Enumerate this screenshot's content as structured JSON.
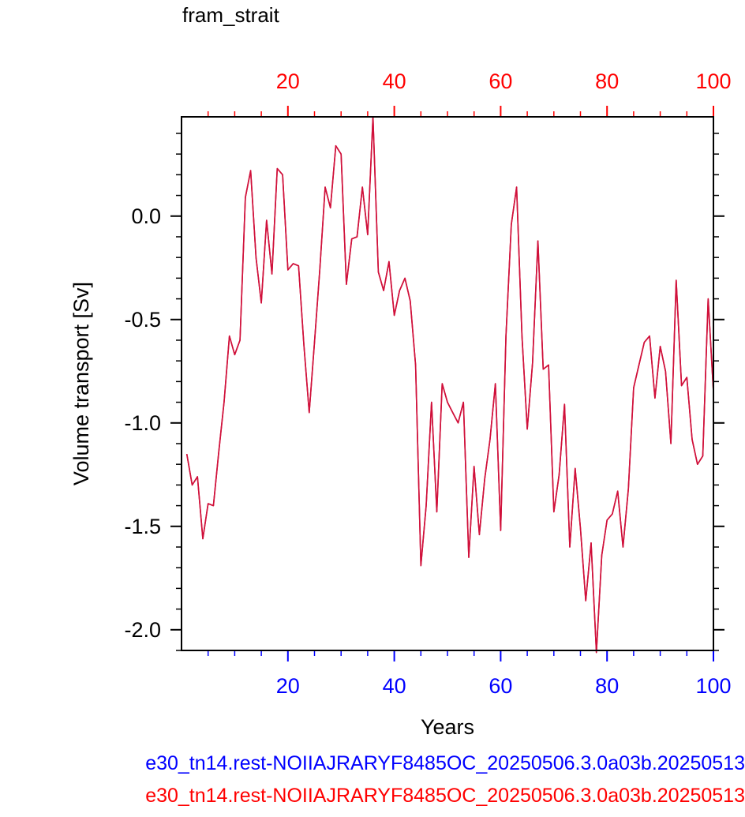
{
  "chart_data": {
    "type": "line",
    "title": "fram_strait",
    "xlabel": "Years",
    "ylabel": "Volume transport [Sv]",
    "xlim": [
      0,
      100
    ],
    "ylim": [
      -2.1,
      0.48
    ],
    "x_ticks": [
      20,
      40,
      60,
      80,
      100
    ],
    "x_tick_labels": [
      "20",
      "40",
      "60",
      "80",
      "100"
    ],
    "y_ticks": [
      0.0,
      -0.5,
      -1.0,
      -1.5,
      -2.0
    ],
    "y_tick_labels": [
      "0.0",
      "-0.5",
      "-1.0",
      "-1.5",
      "-2.0"
    ],
    "grid": false,
    "series": [
      {
        "name": "e30_tn14.rest-NOIIAJRARYF8485OC_20250506.3.0a03b.20250513",
        "color": "#0000ff",
        "x": [
          1,
          2,
          3,
          4,
          5,
          6,
          7,
          8,
          9,
          10,
          11,
          12,
          13,
          14,
          15,
          16,
          17,
          18,
          19,
          20,
          21,
          22,
          23,
          24,
          25,
          26,
          27,
          28,
          29,
          30,
          31,
          32,
          33,
          34,
          35,
          36,
          37,
          38,
          39,
          40,
          41,
          42,
          43,
          44,
          45,
          46,
          47,
          48,
          49,
          50,
          51,
          52,
          53,
          54,
          55,
          56,
          57,
          58,
          59,
          60,
          61,
          62,
          63,
          64,
          65,
          66,
          67,
          68,
          69,
          70,
          71,
          72,
          73,
          74,
          75,
          76,
          77,
          78,
          79,
          80,
          81,
          82,
          83,
          84,
          85,
          86,
          87,
          88,
          89,
          90,
          91,
          92,
          93,
          94,
          95,
          96,
          97,
          98,
          99,
          100
        ],
        "values": [
          -1.15,
          -1.3,
          -1.26,
          -1.56,
          -1.39,
          -1.4,
          -1.14,
          -0.9,
          -0.58,
          -0.67,
          -0.6,
          0.09,
          0.22,
          -0.2,
          -0.42,
          -0.02,
          -0.28,
          0.23,
          0.2,
          -0.26,
          -0.23,
          -0.24,
          -0.62,
          -0.95,
          -0.61,
          -0.26,
          0.14,
          0.04,
          0.34,
          0.3,
          -0.33,
          -0.11,
          -0.1,
          0.14,
          -0.09,
          0.48,
          -0.27,
          -0.36,
          -0.22,
          -0.48,
          -0.36,
          -0.3,
          -0.41,
          -0.72,
          -1.69,
          -1.4,
          -0.9,
          -1.43,
          -0.81,
          -0.9,
          -0.95,
          -1.0,
          -0.9,
          -1.65,
          -1.21,
          -1.54,
          -1.27,
          -1.08,
          -0.81,
          -1.52,
          -0.58,
          -0.04,
          0.14,
          -0.58,
          -1.03,
          -0.71,
          -0.12,
          -0.74,
          -0.72,
          -1.43,
          -1.25,
          -0.91,
          -1.6,
          -1.22,
          -1.51,
          -1.86,
          -1.58,
          -2.11,
          -1.64,
          -1.47,
          -1.44,
          -1.33,
          -1.6,
          -1.32,
          -0.83,
          -0.72,
          -0.61,
          -0.58,
          -0.88,
          -0.63,
          -0.75,
          -1.1,
          -0.31,
          -0.82,
          -0.78,
          -1.08,
          -1.2,
          -1.16,
          -0.4,
          -0.85
        ]
      },
      {
        "name": "e30_tn14.rest-NOIIAJRARYF8485OC_20250506.3.0a03b.20250513",
        "color": "#ff0000",
        "x": [
          1,
          2,
          3,
          4,
          5,
          6,
          7,
          8,
          9,
          10,
          11,
          12,
          13,
          14,
          15,
          16,
          17,
          18,
          19,
          20,
          21,
          22,
          23,
          24,
          25,
          26,
          27,
          28,
          29,
          30,
          31,
          32,
          33,
          34,
          35,
          36,
          37,
          38,
          39,
          40,
          41,
          42,
          43,
          44,
          45,
          46,
          47,
          48,
          49,
          50,
          51,
          52,
          53,
          54,
          55,
          56,
          57,
          58,
          59,
          60,
          61,
          62,
          63,
          64,
          65,
          66,
          67,
          68,
          69,
          70,
          71,
          72,
          73,
          74,
          75,
          76,
          77,
          78,
          79,
          80,
          81,
          82,
          83,
          84,
          85,
          86,
          87,
          88,
          89,
          90,
          91,
          92,
          93,
          94,
          95,
          96,
          97,
          98,
          99,
          100
        ],
        "values": [
          -1.15,
          -1.3,
          -1.26,
          -1.56,
          -1.39,
          -1.4,
          -1.14,
          -0.9,
          -0.58,
          -0.67,
          -0.6,
          0.09,
          0.22,
          -0.2,
          -0.42,
          -0.02,
          -0.28,
          0.23,
          0.2,
          -0.26,
          -0.23,
          -0.24,
          -0.62,
          -0.95,
          -0.61,
          -0.26,
          0.14,
          0.04,
          0.34,
          0.3,
          -0.33,
          -0.11,
          -0.1,
          0.14,
          -0.09,
          0.48,
          -0.27,
          -0.36,
          -0.22,
          -0.48,
          -0.36,
          -0.3,
          -0.41,
          -0.72,
          -1.69,
          -1.4,
          -0.9,
          -1.43,
          -0.81,
          -0.9,
          -0.95,
          -1.0,
          -0.9,
          -1.65,
          -1.21,
          -1.54,
          -1.27,
          -1.08,
          -0.81,
          -1.52,
          -0.58,
          -0.04,
          0.14,
          -0.58,
          -1.03,
          -0.71,
          -0.12,
          -0.74,
          -0.72,
          -1.43,
          -1.25,
          -0.91,
          -1.6,
          -1.22,
          -1.51,
          -1.86,
          -1.58,
          -2.11,
          -1.64,
          -1.47,
          -1.44,
          -1.33,
          -1.6,
          -1.32,
          -0.83,
          -0.72,
          -0.61,
          -0.58,
          -0.88,
          -0.63,
          -0.75,
          -1.1,
          -0.31,
          -0.82,
          -0.78,
          -1.08,
          -1.2,
          -1.16,
          -0.4,
          -0.85
        ]
      }
    ],
    "colors": {
      "bottom_axis": "#0000ff",
      "top_axis": "#ff0000",
      "line": "#d0103a"
    }
  }
}
